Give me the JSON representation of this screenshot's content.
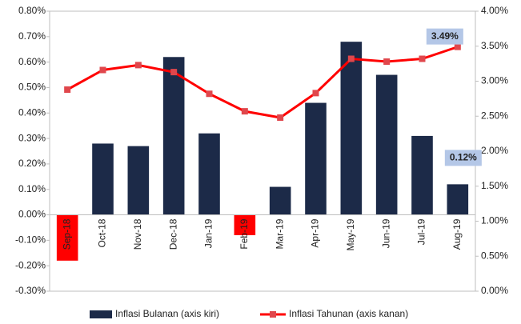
{
  "chart_data": {
    "type": "bar-line",
    "categories": [
      "Sep-18",
      "Oct-18",
      "Nov-18",
      "Dec-18",
      "Jan-19",
      "Feb-19",
      "Mar-19",
      "Apr-19",
      "May-19",
      "Jun-19",
      "Jul-19",
      "Aug-19"
    ],
    "series": [
      {
        "name": "Inflasi Bulanan (axis kiri)",
        "type": "bar",
        "axis": "y",
        "color": "#1c2a48",
        "negative_color": "#ff0000",
        "values": [
          -0.18,
          0.28,
          0.27,
          0.62,
          0.32,
          -0.08,
          0.11,
          0.44,
          0.68,
          0.55,
          0.31,
          0.12
        ],
        "value_labels": [
          null,
          null,
          null,
          null,
          null,
          null,
          null,
          null,
          null,
          null,
          null,
          "0.12%"
        ]
      },
      {
        "name": "Inflasi Tahunan (axis kanan)",
        "type": "line",
        "axis": "y2",
        "color": "#ff0000",
        "values": [
          2.88,
          3.16,
          3.23,
          3.13,
          2.82,
          2.57,
          2.48,
          2.83,
          3.32,
          3.28,
          3.32,
          3.49
        ],
        "value_labels": [
          null,
          null,
          null,
          null,
          null,
          null,
          null,
          null,
          null,
          null,
          null,
          "3.49%"
        ]
      }
    ],
    "ylim": [
      -0.3,
      0.8
    ],
    "yticks": [
      {
        "value": -0.3,
        "label": "-0.30%"
      },
      {
        "value": -0.2,
        "label": "-0.20%"
      },
      {
        "value": -0.1,
        "label": "-0.10%"
      },
      {
        "value": 0,
        "label": "0.00%"
      },
      {
        "value": 0.1,
        "label": "0.10%"
      },
      {
        "value": 0.2,
        "label": "0.20%"
      },
      {
        "value": 0.3,
        "label": "0.30%"
      },
      {
        "value": 0.4,
        "label": "0.40%"
      },
      {
        "value": 0.5,
        "label": "0.50%"
      },
      {
        "value": 0.6,
        "label": "0.60%"
      },
      {
        "value": 0.7,
        "label": "0.70%"
      },
      {
        "value": 0.8,
        "label": "0.80%"
      }
    ],
    "y2lim": [
      0,
      4
    ],
    "y2ticks": [
      {
        "value": 0,
        "label": "0.00%"
      },
      {
        "value": 0.5,
        "label": "0.50%"
      },
      {
        "value": 1,
        "label": "1.00%"
      },
      {
        "value": 1.5,
        "label": "1.50%"
      },
      {
        "value": 2,
        "label": "2.00%"
      },
      {
        "value": 2.5,
        "label": "2.50%"
      },
      {
        "value": 3,
        "label": "3.00%"
      },
      {
        "value": 3.5,
        "label": "3.50%"
      },
      {
        "value": 4,
        "label": "4.00%"
      }
    ],
    "grid": false,
    "legend": "bottom"
  }
}
